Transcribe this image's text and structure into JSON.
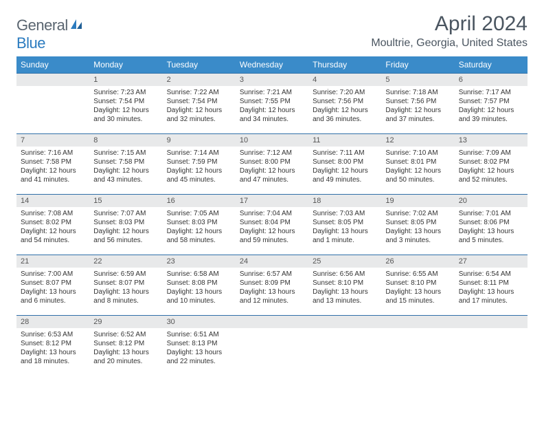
{
  "brand": {
    "part1": "General",
    "part2": "Blue"
  },
  "title": "April 2024",
  "location": "Moultrie, Georgia, United States",
  "colors": {
    "header_bg": "#3a8bc9",
    "header_text": "#ffffff",
    "border": "#2f6fa8",
    "daynum_bg": "#e8e9ea",
    "text": "#333333",
    "title_color": "#4a5560",
    "logo_gray": "#5a6570",
    "logo_blue": "#2b7bbf"
  },
  "weekdays": [
    "Sunday",
    "Monday",
    "Tuesday",
    "Wednesday",
    "Thursday",
    "Friday",
    "Saturday"
  ],
  "weeks": [
    [
      null,
      {
        "n": "1",
        "sunrise": "7:23 AM",
        "sunset": "7:54 PM",
        "daylight": "12 hours and 30 minutes."
      },
      {
        "n": "2",
        "sunrise": "7:22 AM",
        "sunset": "7:54 PM",
        "daylight": "12 hours and 32 minutes."
      },
      {
        "n": "3",
        "sunrise": "7:21 AM",
        "sunset": "7:55 PM",
        "daylight": "12 hours and 34 minutes."
      },
      {
        "n": "4",
        "sunrise": "7:20 AM",
        "sunset": "7:56 PM",
        "daylight": "12 hours and 36 minutes."
      },
      {
        "n": "5",
        "sunrise": "7:18 AM",
        "sunset": "7:56 PM",
        "daylight": "12 hours and 37 minutes."
      },
      {
        "n": "6",
        "sunrise": "7:17 AM",
        "sunset": "7:57 PM",
        "daylight": "12 hours and 39 minutes."
      }
    ],
    [
      {
        "n": "7",
        "sunrise": "7:16 AM",
        "sunset": "7:58 PM",
        "daylight": "12 hours and 41 minutes."
      },
      {
        "n": "8",
        "sunrise": "7:15 AM",
        "sunset": "7:58 PM",
        "daylight": "12 hours and 43 minutes."
      },
      {
        "n": "9",
        "sunrise": "7:14 AM",
        "sunset": "7:59 PM",
        "daylight": "12 hours and 45 minutes."
      },
      {
        "n": "10",
        "sunrise": "7:12 AM",
        "sunset": "8:00 PM",
        "daylight": "12 hours and 47 minutes."
      },
      {
        "n": "11",
        "sunrise": "7:11 AM",
        "sunset": "8:00 PM",
        "daylight": "12 hours and 49 minutes."
      },
      {
        "n": "12",
        "sunrise": "7:10 AM",
        "sunset": "8:01 PM",
        "daylight": "12 hours and 50 minutes."
      },
      {
        "n": "13",
        "sunrise": "7:09 AM",
        "sunset": "8:02 PM",
        "daylight": "12 hours and 52 minutes."
      }
    ],
    [
      {
        "n": "14",
        "sunrise": "7:08 AM",
        "sunset": "8:02 PM",
        "daylight": "12 hours and 54 minutes."
      },
      {
        "n": "15",
        "sunrise": "7:07 AM",
        "sunset": "8:03 PM",
        "daylight": "12 hours and 56 minutes."
      },
      {
        "n": "16",
        "sunrise": "7:05 AM",
        "sunset": "8:03 PM",
        "daylight": "12 hours and 58 minutes."
      },
      {
        "n": "17",
        "sunrise": "7:04 AM",
        "sunset": "8:04 PM",
        "daylight": "12 hours and 59 minutes."
      },
      {
        "n": "18",
        "sunrise": "7:03 AM",
        "sunset": "8:05 PM",
        "daylight": "13 hours and 1 minute."
      },
      {
        "n": "19",
        "sunrise": "7:02 AM",
        "sunset": "8:05 PM",
        "daylight": "13 hours and 3 minutes."
      },
      {
        "n": "20",
        "sunrise": "7:01 AM",
        "sunset": "8:06 PM",
        "daylight": "13 hours and 5 minutes."
      }
    ],
    [
      {
        "n": "21",
        "sunrise": "7:00 AM",
        "sunset": "8:07 PM",
        "daylight": "13 hours and 6 minutes."
      },
      {
        "n": "22",
        "sunrise": "6:59 AM",
        "sunset": "8:07 PM",
        "daylight": "13 hours and 8 minutes."
      },
      {
        "n": "23",
        "sunrise": "6:58 AM",
        "sunset": "8:08 PM",
        "daylight": "13 hours and 10 minutes."
      },
      {
        "n": "24",
        "sunrise": "6:57 AM",
        "sunset": "8:09 PM",
        "daylight": "13 hours and 12 minutes."
      },
      {
        "n": "25",
        "sunrise": "6:56 AM",
        "sunset": "8:10 PM",
        "daylight": "13 hours and 13 minutes."
      },
      {
        "n": "26",
        "sunrise": "6:55 AM",
        "sunset": "8:10 PM",
        "daylight": "13 hours and 15 minutes."
      },
      {
        "n": "27",
        "sunrise": "6:54 AM",
        "sunset": "8:11 PM",
        "daylight": "13 hours and 17 minutes."
      }
    ],
    [
      {
        "n": "28",
        "sunrise": "6:53 AM",
        "sunset": "8:12 PM",
        "daylight": "13 hours and 18 minutes."
      },
      {
        "n": "29",
        "sunrise": "6:52 AM",
        "sunset": "8:12 PM",
        "daylight": "13 hours and 20 minutes."
      },
      {
        "n": "30",
        "sunrise": "6:51 AM",
        "sunset": "8:13 PM",
        "daylight": "13 hours and 22 minutes."
      },
      null,
      null,
      null,
      null
    ]
  ],
  "labels": {
    "sunrise": "Sunrise:",
    "sunset": "Sunset:",
    "daylight": "Daylight:"
  }
}
